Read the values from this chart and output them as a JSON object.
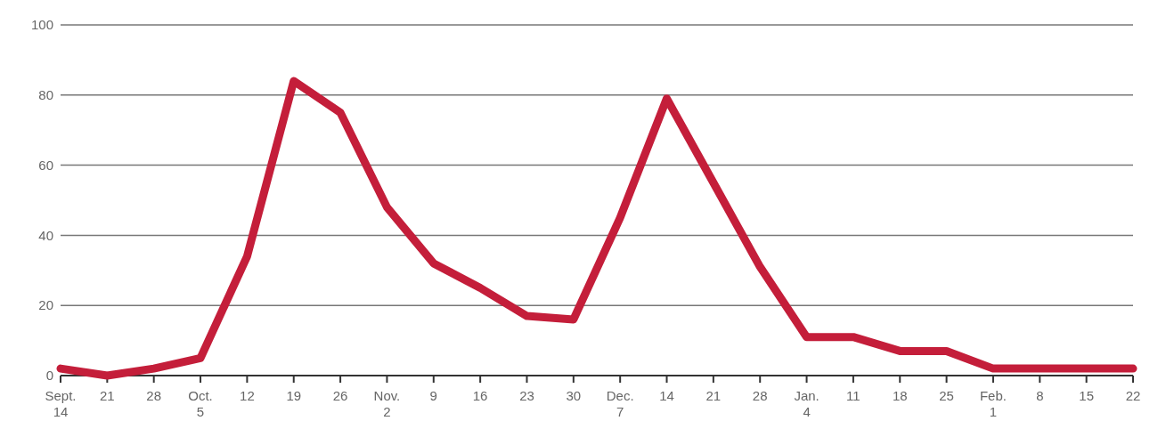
{
  "chart_data": {
    "type": "line",
    "categories": [
      "Sept.\n14",
      "21",
      "28",
      "Oct.\n5",
      "12",
      "19",
      "26",
      "Nov.\n2",
      "9",
      "16",
      "23",
      "30",
      "Dec.\n7",
      "14",
      "21",
      "28",
      "Jan.\n4",
      "11",
      "18",
      "25",
      "Feb.\n1",
      "8",
      "15",
      "22"
    ],
    "series": [
      {
        "color": "#c41e3a",
        "values": [
          2,
          0,
          2,
          5,
          34,
          84,
          75,
          48,
          32,
          25,
          17,
          16,
          45,
          79,
          55,
          31,
          11,
          11,
          7,
          7,
          2,
          2,
          2,
          2
        ]
      }
    ],
    "ylim": [
      0,
      100
    ],
    "yticks": [
      0,
      20,
      40,
      60,
      80,
      100
    ],
    "grid": "y",
    "marker": "none",
    "line_style": "solid"
  }
}
